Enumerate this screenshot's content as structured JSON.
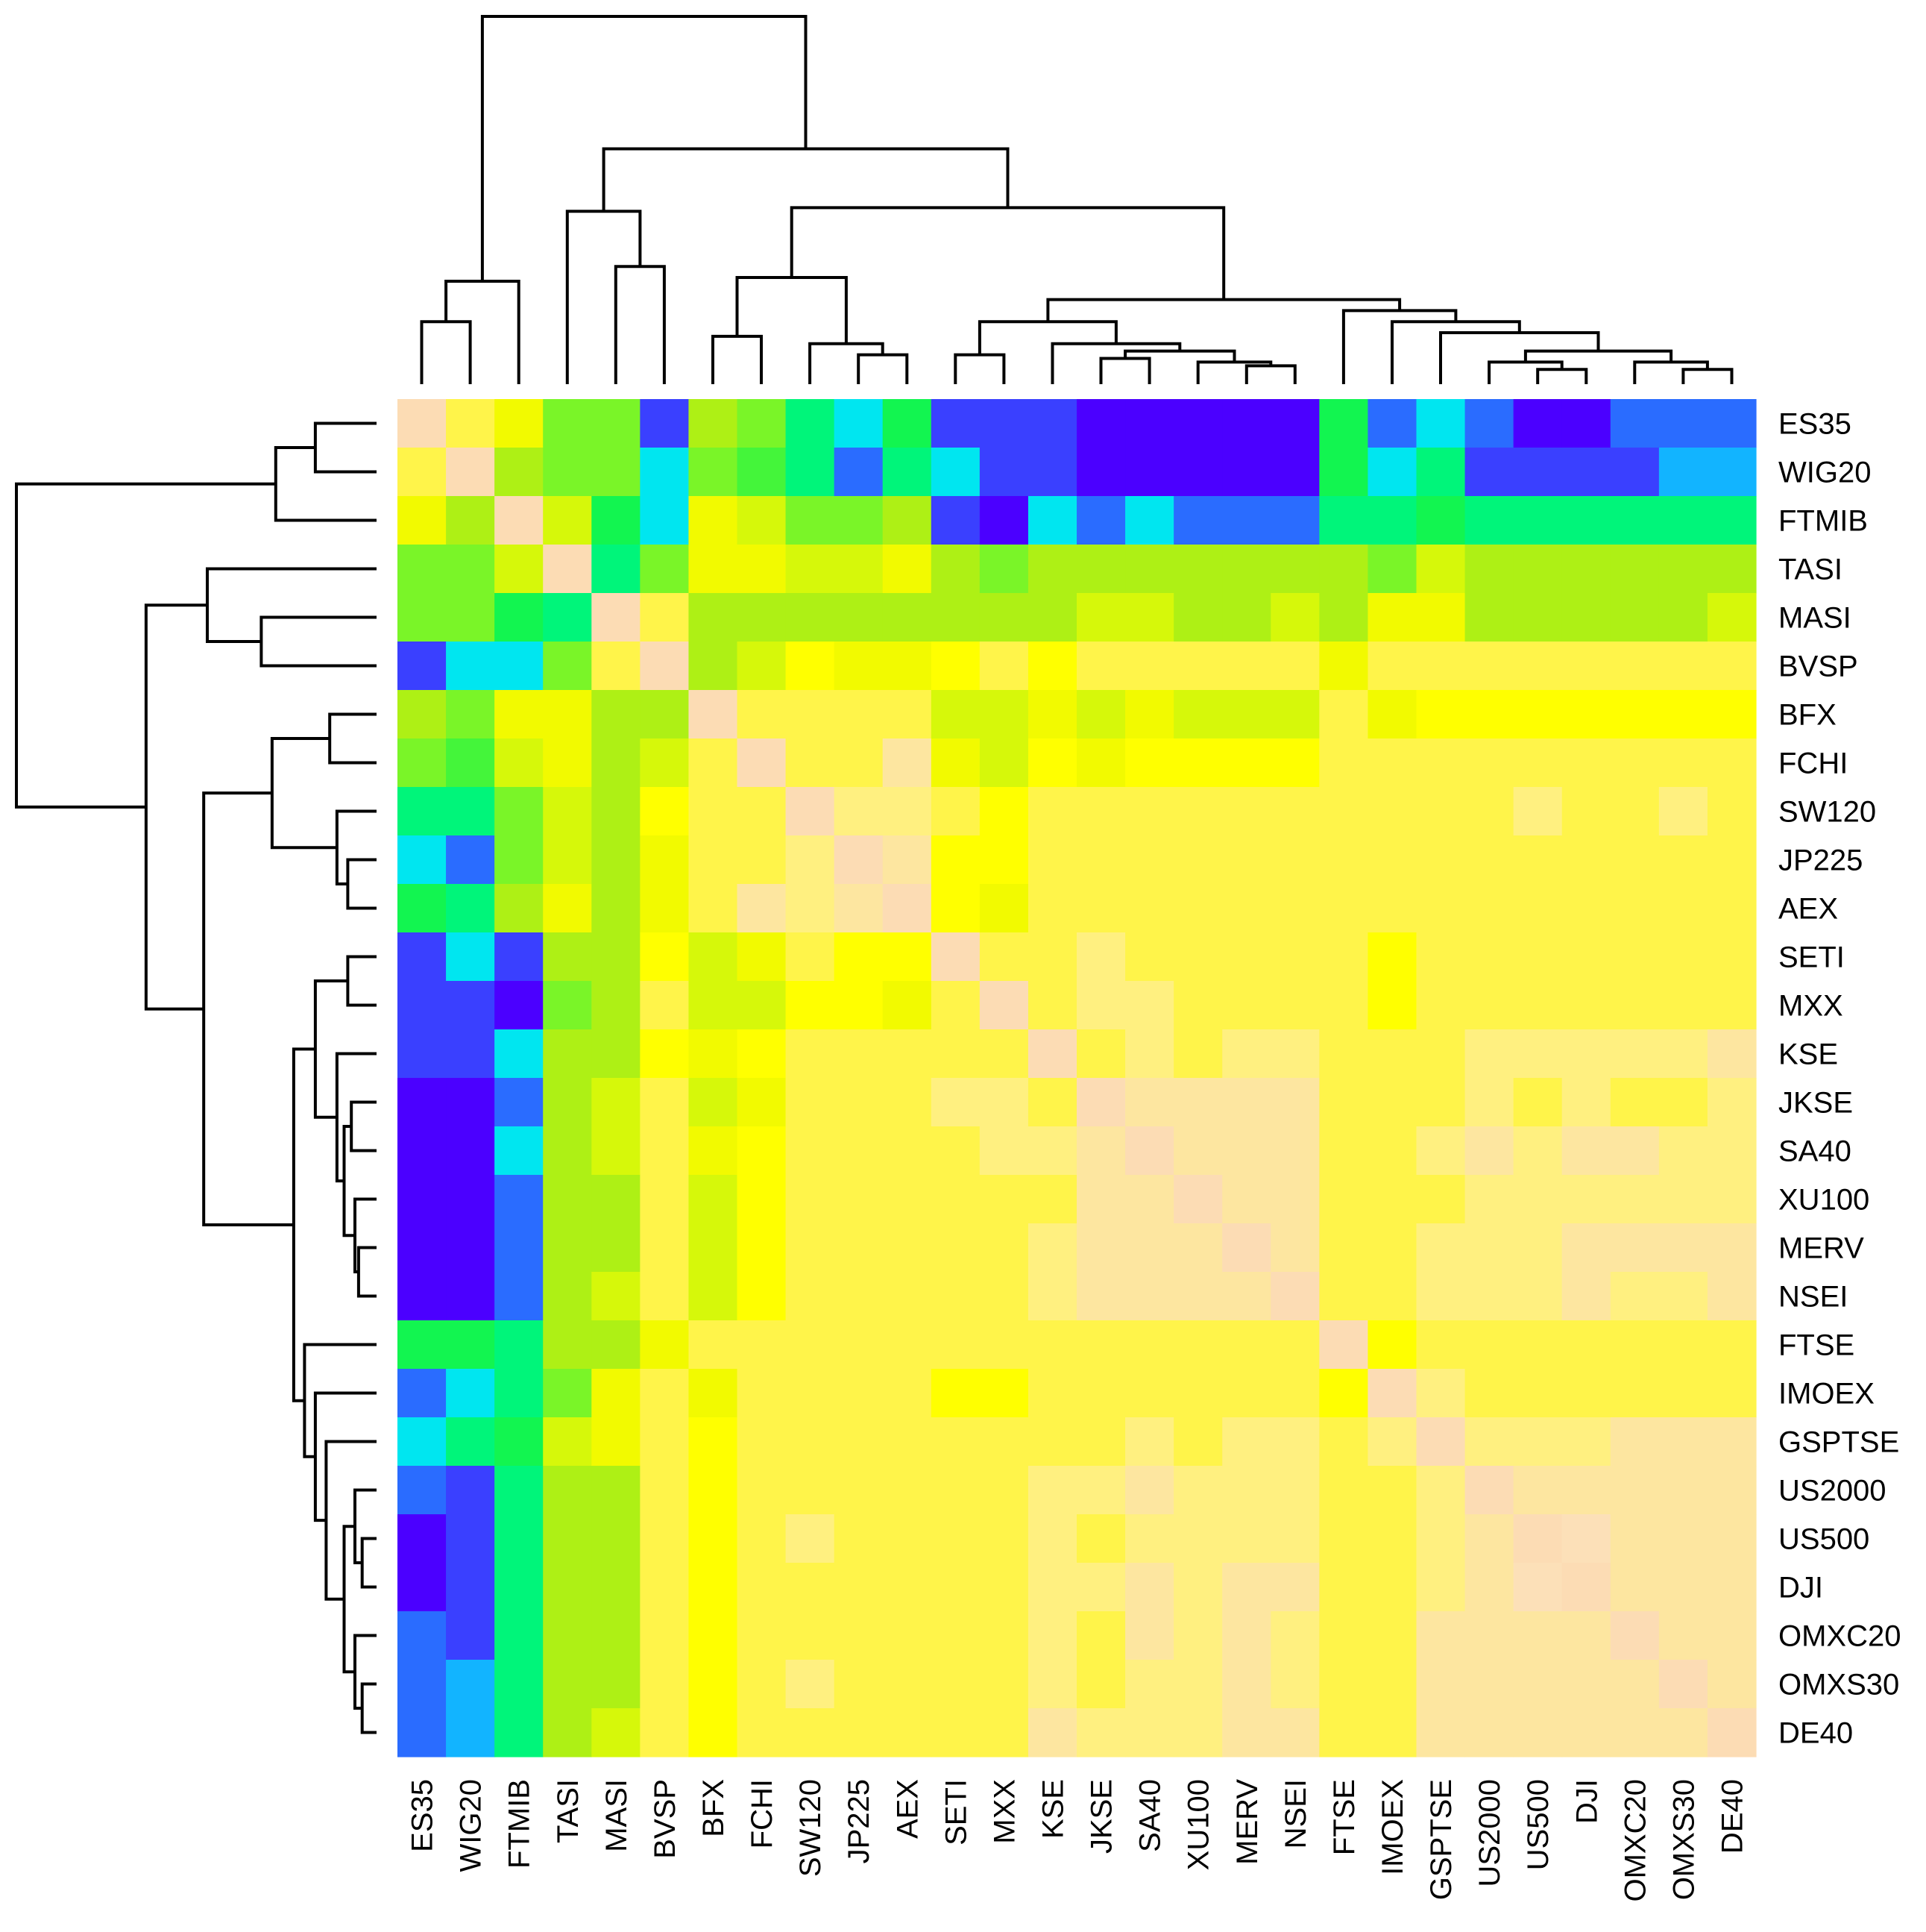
{
  "chart_data": {
    "type": "heatmap",
    "title": "",
    "xlabel": "",
    "ylabel": "",
    "row_dendrogram": true,
    "col_dendrogram": true,
    "labels": [
      "ES35",
      "WIG20",
      "FTMIB",
      "TASI",
      "MASI",
      "BVSP",
      "BFX",
      "FCHI",
      "SW120",
      "JP225",
      "AEX",
      "SETI",
      "MXX",
      "KSE",
      "JKSE",
      "SA40",
      "XU100",
      "MERV",
      "NSEI",
      "FTSE",
      "IMOEX",
      "GSPTSE",
      "US2000",
      "US500",
      "DJI",
      "OMXC20",
      "OMXS30",
      "DE40"
    ],
    "colors": {
      "levels": [
        "#4b00ff",
        "#3a40ff",
        "#2a6cff",
        "#12b4ff",
        "#00e6f0",
        "#00f0b4",
        "#00f57a",
        "#12f550",
        "#44f53a",
        "#7af528",
        "#aef015",
        "#d6f80a",
        "#f2fa00",
        "#ffff00",
        "#fff44a",
        "#fff080",
        "#fde6a0",
        "#fce0b8"
      ],
      "diagonal": "#fcdcb4"
    },
    "value_scale": "correlation, low (blue) to high (cream)",
    "values": [
      [
        1.0,
        0.79,
        0.74,
        0.62,
        0.62,
        0.36,
        0.65,
        0.63,
        0.54,
        0.45,
        0.58,
        0.38,
        0.38,
        0.38,
        0.33,
        0.33,
        0.33,
        0.33,
        0.33,
        0.58,
        0.4,
        0.46,
        0.4,
        0.33,
        0.33,
        0.4,
        0.4,
        0.4
      ],
      [
        0.79,
        1.0,
        0.66,
        0.64,
        0.62,
        0.46,
        0.64,
        0.61,
        0.54,
        0.39,
        0.53,
        0.45,
        0.38,
        0.38,
        0.33,
        0.33,
        0.33,
        0.33,
        0.33,
        0.58,
        0.45,
        0.53,
        0.38,
        0.38,
        0.38,
        0.38,
        0.44,
        0.44
      ],
      [
        0.74,
        0.66,
        1.0,
        0.69,
        0.58,
        0.46,
        0.73,
        0.69,
        0.63,
        0.63,
        0.66,
        0.38,
        0.33,
        0.45,
        0.4,
        0.45,
        0.4,
        0.4,
        0.4,
        0.53,
        0.53,
        0.58,
        0.53,
        0.53,
        0.53,
        0.53,
        0.53,
        0.53
      ],
      [
        0.62,
        0.64,
        0.69,
        1.0,
        0.53,
        0.62,
        0.73,
        0.73,
        0.69,
        0.69,
        0.73,
        0.66,
        0.62,
        0.66,
        0.66,
        0.66,
        0.66,
        0.66,
        0.66,
        0.67,
        0.62,
        0.69,
        0.67,
        0.67,
        0.67,
        0.67,
        0.67,
        0.66
      ],
      [
        0.62,
        0.62,
        0.58,
        0.53,
        1.0,
        0.79,
        0.66,
        0.67,
        0.66,
        0.66,
        0.67,
        0.66,
        0.68,
        0.68,
        0.69,
        0.69,
        0.68,
        0.68,
        0.69,
        0.67,
        0.73,
        0.73,
        0.68,
        0.68,
        0.68,
        0.68,
        0.68,
        0.69
      ],
      [
        0.36,
        0.46,
        0.46,
        0.62,
        0.79,
        1.0,
        0.66,
        0.7,
        0.77,
        0.74,
        0.74,
        0.77,
        0.79,
        0.77,
        0.8,
        0.8,
        0.8,
        0.81,
        0.81,
        0.74,
        0.8,
        0.79,
        0.79,
        0.79,
        0.79,
        0.79,
        0.79,
        0.79
      ],
      [
        0.65,
        0.64,
        0.73,
        0.73,
        0.66,
        0.66,
        1.0,
        0.81,
        0.8,
        0.8,
        0.81,
        0.7,
        0.7,
        0.73,
        0.69,
        0.73,
        0.69,
        0.69,
        0.69,
        0.81,
        0.73,
        0.77,
        0.77,
        0.77,
        0.77,
        0.77,
        0.77,
        0.77
      ],
      [
        0.63,
        0.61,
        0.69,
        0.73,
        0.67,
        0.7,
        0.81,
        1.0,
        0.81,
        0.81,
        0.87,
        0.73,
        0.7,
        0.77,
        0.73,
        0.77,
        0.77,
        0.77,
        0.77,
        0.8,
        0.8,
        0.8,
        0.8,
        0.8,
        0.8,
        0.8,
        0.8,
        0.8
      ],
      [
        0.54,
        0.54,
        0.63,
        0.69,
        0.66,
        0.77,
        0.8,
        0.81,
        1.0,
        0.83,
        0.83,
        0.8,
        0.78,
        0.81,
        0.81,
        0.81,
        0.81,
        0.81,
        0.81,
        0.81,
        0.81,
        0.81,
        0.81,
        0.84,
        0.81,
        0.81,
        0.84,
        0.81
      ],
      [
        0.45,
        0.39,
        0.63,
        0.69,
        0.66,
        0.74,
        0.8,
        0.81,
        0.83,
        1.0,
        0.86,
        0.77,
        0.77,
        0.8,
        0.8,
        0.8,
        0.8,
        0.8,
        0.8,
        0.8,
        0.8,
        0.8,
        0.8,
        0.8,
        0.8,
        0.8,
        0.8,
        0.8
      ],
      [
        0.58,
        0.53,
        0.66,
        0.73,
        0.67,
        0.74,
        0.81,
        0.87,
        0.83,
        0.86,
        1.0,
        0.77,
        0.74,
        0.8,
        0.8,
        0.8,
        0.79,
        0.8,
        0.8,
        0.8,
        0.8,
        0.8,
        0.8,
        0.8,
        0.8,
        0.8,
        0.8,
        0.8
      ],
      [
        0.38,
        0.45,
        0.38,
        0.66,
        0.66,
        0.77,
        0.7,
        0.73,
        0.8,
        0.77,
        0.77,
        1.0,
        0.81,
        0.81,
        0.83,
        0.81,
        0.81,
        0.81,
        0.81,
        0.81,
        0.78,
        0.81,
        0.81,
        0.81,
        0.81,
        0.81,
        0.81,
        0.81
      ],
      [
        0.38,
        0.38,
        0.33,
        0.62,
        0.68,
        0.79,
        0.7,
        0.7,
        0.78,
        0.77,
        0.74,
        0.81,
        1.0,
        0.81,
        0.83,
        0.83,
        0.81,
        0.81,
        0.81,
        0.81,
        0.78,
        0.81,
        0.81,
        0.81,
        0.81,
        0.81,
        0.81,
        0.81
      ],
      [
        0.38,
        0.38,
        0.45,
        0.66,
        0.68,
        0.77,
        0.73,
        0.77,
        0.81,
        0.8,
        0.8,
        0.81,
        0.81,
        1.0,
        0.81,
        0.83,
        0.81,
        0.83,
        0.83,
        0.81,
        0.81,
        0.81,
        0.83,
        0.83,
        0.83,
        0.83,
        0.83,
        0.86
      ],
      [
        0.33,
        0.33,
        0.4,
        0.66,
        0.69,
        0.8,
        0.69,
        0.73,
        0.81,
        0.8,
        0.8,
        0.83,
        0.83,
        0.81,
        1.0,
        0.85,
        0.85,
        0.85,
        0.85,
        0.81,
        0.81,
        0.81,
        0.83,
        0.81,
        0.83,
        0.81,
        0.81,
        0.83
      ],
      [
        0.33,
        0.33,
        0.45,
        0.66,
        0.69,
        0.8,
        0.73,
        0.77,
        0.81,
        0.8,
        0.8,
        0.81,
        0.83,
        0.83,
        0.85,
        1.0,
        0.86,
        0.86,
        0.86,
        0.81,
        0.81,
        0.83,
        0.86,
        0.83,
        0.86,
        0.86,
        0.83,
        0.83
      ],
      [
        0.33,
        0.33,
        0.4,
        0.66,
        0.68,
        0.8,
        0.69,
        0.77,
        0.81,
        0.8,
        0.79,
        0.81,
        0.81,
        0.81,
        0.85,
        0.86,
        1.0,
        0.86,
        0.86,
        0.81,
        0.81,
        0.81,
        0.83,
        0.83,
        0.83,
        0.83,
        0.83,
        0.83
      ],
      [
        0.33,
        0.33,
        0.4,
        0.66,
        0.68,
        0.81,
        0.69,
        0.77,
        0.81,
        0.8,
        0.8,
        0.81,
        0.81,
        0.83,
        0.85,
        0.86,
        0.86,
        1.0,
        0.88,
        0.81,
        0.81,
        0.83,
        0.83,
        0.83,
        0.86,
        0.86,
        0.86,
        0.86
      ],
      [
        0.33,
        0.33,
        0.4,
        0.66,
        0.69,
        0.81,
        0.69,
        0.77,
        0.81,
        0.8,
        0.8,
        0.81,
        0.81,
        0.83,
        0.85,
        0.86,
        0.86,
        0.88,
        1.0,
        0.81,
        0.81,
        0.83,
        0.83,
        0.83,
        0.86,
        0.83,
        0.83,
        0.86
      ],
      [
        0.58,
        0.58,
        0.53,
        0.67,
        0.67,
        0.74,
        0.81,
        0.8,
        0.81,
        0.8,
        0.8,
        0.81,
        0.81,
        0.81,
        0.81,
        0.81,
        0.81,
        0.81,
        0.81,
        1.0,
        0.78,
        0.81,
        0.81,
        0.81,
        0.81,
        0.81,
        0.81,
        0.81
      ],
      [
        0.4,
        0.45,
        0.53,
        0.62,
        0.73,
        0.8,
        0.73,
        0.8,
        0.81,
        0.8,
        0.8,
        0.78,
        0.78,
        0.81,
        0.81,
        0.81,
        0.81,
        0.81,
        0.81,
        0.78,
        1.0,
        0.83,
        0.81,
        0.81,
        0.81,
        0.81,
        0.81,
        0.81
      ],
      [
        0.46,
        0.53,
        0.58,
        0.69,
        0.73,
        0.79,
        0.77,
        0.8,
        0.81,
        0.8,
        0.8,
        0.81,
        0.81,
        0.81,
        0.81,
        0.83,
        0.81,
        0.83,
        0.83,
        0.81,
        0.83,
        1.0,
        0.83,
        0.83,
        0.83,
        0.86,
        0.86,
        0.86
      ],
      [
        0.4,
        0.38,
        0.53,
        0.67,
        0.68,
        0.79,
        0.77,
        0.8,
        0.81,
        0.8,
        0.8,
        0.81,
        0.81,
        0.83,
        0.83,
        0.86,
        0.83,
        0.83,
        0.83,
        0.81,
        0.81,
        0.83,
        1.0,
        0.88,
        0.88,
        0.86,
        0.86,
        0.86
      ],
      [
        0.33,
        0.38,
        0.53,
        0.67,
        0.68,
        0.79,
        0.77,
        0.8,
        0.84,
        0.8,
        0.8,
        0.81,
        0.81,
        0.83,
        0.81,
        0.83,
        0.83,
        0.83,
        0.83,
        0.81,
        0.81,
        0.83,
        0.88,
        1.0,
        0.9,
        0.86,
        0.86,
        0.86
      ],
      [
        0.33,
        0.38,
        0.53,
        0.67,
        0.68,
        0.79,
        0.77,
        0.8,
        0.81,
        0.8,
        0.8,
        0.81,
        0.81,
        0.83,
        0.83,
        0.86,
        0.83,
        0.86,
        0.86,
        0.81,
        0.81,
        0.83,
        0.88,
        0.9,
        1.0,
        0.86,
        0.86,
        0.86
      ],
      [
        0.4,
        0.38,
        0.53,
        0.67,
        0.68,
        0.79,
        0.77,
        0.8,
        0.81,
        0.8,
        0.8,
        0.81,
        0.81,
        0.83,
        0.81,
        0.86,
        0.83,
        0.86,
        0.83,
        0.81,
        0.81,
        0.86,
        0.86,
        0.86,
        0.86,
        1.0,
        0.86,
        0.88
      ],
      [
        0.4,
        0.44,
        0.53,
        0.67,
        0.68,
        0.79,
        0.77,
        0.8,
        0.84,
        0.8,
        0.8,
        0.81,
        0.81,
        0.83,
        0.81,
        0.83,
        0.83,
        0.86,
        0.83,
        0.81,
        0.81,
        0.86,
        0.86,
        0.86,
        0.86,
        0.86,
        1.0,
        0.86
      ],
      [
        0.4,
        0.44,
        0.53,
        0.66,
        0.69,
        0.79,
        0.77,
        0.8,
        0.81,
        0.8,
        0.8,
        0.81,
        0.81,
        0.86,
        0.83,
        0.83,
        0.83,
        0.86,
        0.86,
        0.81,
        0.81,
        0.86,
        0.86,
        0.86,
        0.86,
        0.88,
        0.86,
        1.0
      ]
    ],
    "dendrogram_heights": {
      "max_height": 1.0,
      "col_merges": [
        {
          "leaves": [
            "ES35",
            "WIG20"
          ],
          "height": 0.17
        },
        {
          "leaves": [
            "ES35",
            "WIG20",
            "FTMIB"
          ],
          "height": 0.28
        },
        {
          "leaves": [
            "TASI",
            "MASI",
            "BVSP"
          ],
          "height": 0.47
        },
        {
          "leaves": [
            "MASI",
            "BVSP"
          ],
          "height": 0.32
        },
        {
          "leaves": [
            "BFX",
            "FCHI"
          ],
          "height": 0.13
        },
        {
          "leaves": [
            "JP225",
            "AEX"
          ],
          "height": 0.08
        },
        {
          "leaves": [
            "SW120",
            "JP225",
            "AEX"
          ],
          "height": 0.11
        },
        {
          "leaves": [
            "BFX",
            "FCHI",
            "SW120",
            "JP225",
            "AEX"
          ],
          "height": 0.29
        },
        {
          "leaves": [
            "SETI",
            "MXX"
          ],
          "height": 0.08
        },
        {
          "leaves": [
            "JKSE",
            "SA40"
          ],
          "height": 0.07
        },
        {
          "leaves": [
            "KSE",
            "JKSE",
            "SA40",
            "XU100",
            "MERV",
            "NSEI"
          ],
          "height": 0.11
        },
        {
          "leaves": [
            "MERV",
            "NSEI"
          ],
          "height": 0.05
        },
        {
          "leaves": [
            "SETI",
            "MXX",
            "KSE",
            "JKSE",
            "SA40",
            "XU100",
            "MERV",
            "NSEI"
          ],
          "height": 0.17
        },
        {
          "leaves": [
            "US500",
            "DJI"
          ],
          "height": 0.04
        },
        {
          "leaves": [
            "OMXS30",
            "DE40"
          ],
          "height": 0.04
        },
        {
          "leaves": [
            "US2000",
            "US500",
            "DJI",
            "OMXC20",
            "OMXS30",
            "DE40"
          ],
          "height": 0.09
        },
        {
          "leaves": [
            "GSPTSE",
            "US2000",
            "US500",
            "DJI",
            "OMXC20",
            "OMXS30",
            "DE40"
          ],
          "height": 0.14
        },
        {
          "leaves": [
            "IMOEX",
            "GSPTSE",
            "US2000",
            "US500",
            "DJI",
            "OMXC20",
            "OMXS30",
            "DE40"
          ],
          "height": 0.17
        },
        {
          "leaves": [
            "FTSE",
            "IMOEX",
            "GSPTSE",
            "US2000",
            "US500",
            "DJI",
            "OMXC20",
            "OMXS30",
            "DE40"
          ],
          "height": 0.2
        },
        {
          "leaves": [
            "SETI",
            "MXX",
            "KSE",
            "JKSE",
            "SA40",
            "XU100",
            "MERV",
            "NSEI",
            "FTSE",
            "IMOEX",
            "GSPTSE",
            "US2000",
            "US500",
            "DJI",
            "OMXC20",
            "OMXS30",
            "DE40"
          ],
          "height": 0.23
        },
        {
          "leaves": [
            "BFX",
            "FCHI",
            "SW120",
            "JP225",
            "AEX",
            "SETI",
            "MXX",
            "KSE",
            "JKSE",
            "SA40",
            "XU100",
            "MERV",
            "NSEI",
            "FTSE",
            "IMOEX",
            "GSPTSE",
            "US2000",
            "US500",
            "DJI",
            "OMXC20",
            "OMXS30",
            "DE40"
          ],
          "height": 0.48
        },
        {
          "leaves": [
            "TASI",
            "MASI",
            "BVSP",
            "BFX",
            "FCHI",
            "SW120",
            "JP225",
            "AEX",
            "SETI",
            "MXX",
            "KSE",
            "JKSE",
            "SA40",
            "XU100",
            "MERV",
            "NSEI",
            "FTSE",
            "IMOEX",
            "GSPTSE",
            "US2000",
            "US500",
            "DJI",
            "OMXC20",
            "OMXS30",
            "DE40"
          ],
          "height": 0.64
        },
        {
          "leaves": [
            "all"
          ],
          "height": 1.0
        }
      ]
    }
  }
}
